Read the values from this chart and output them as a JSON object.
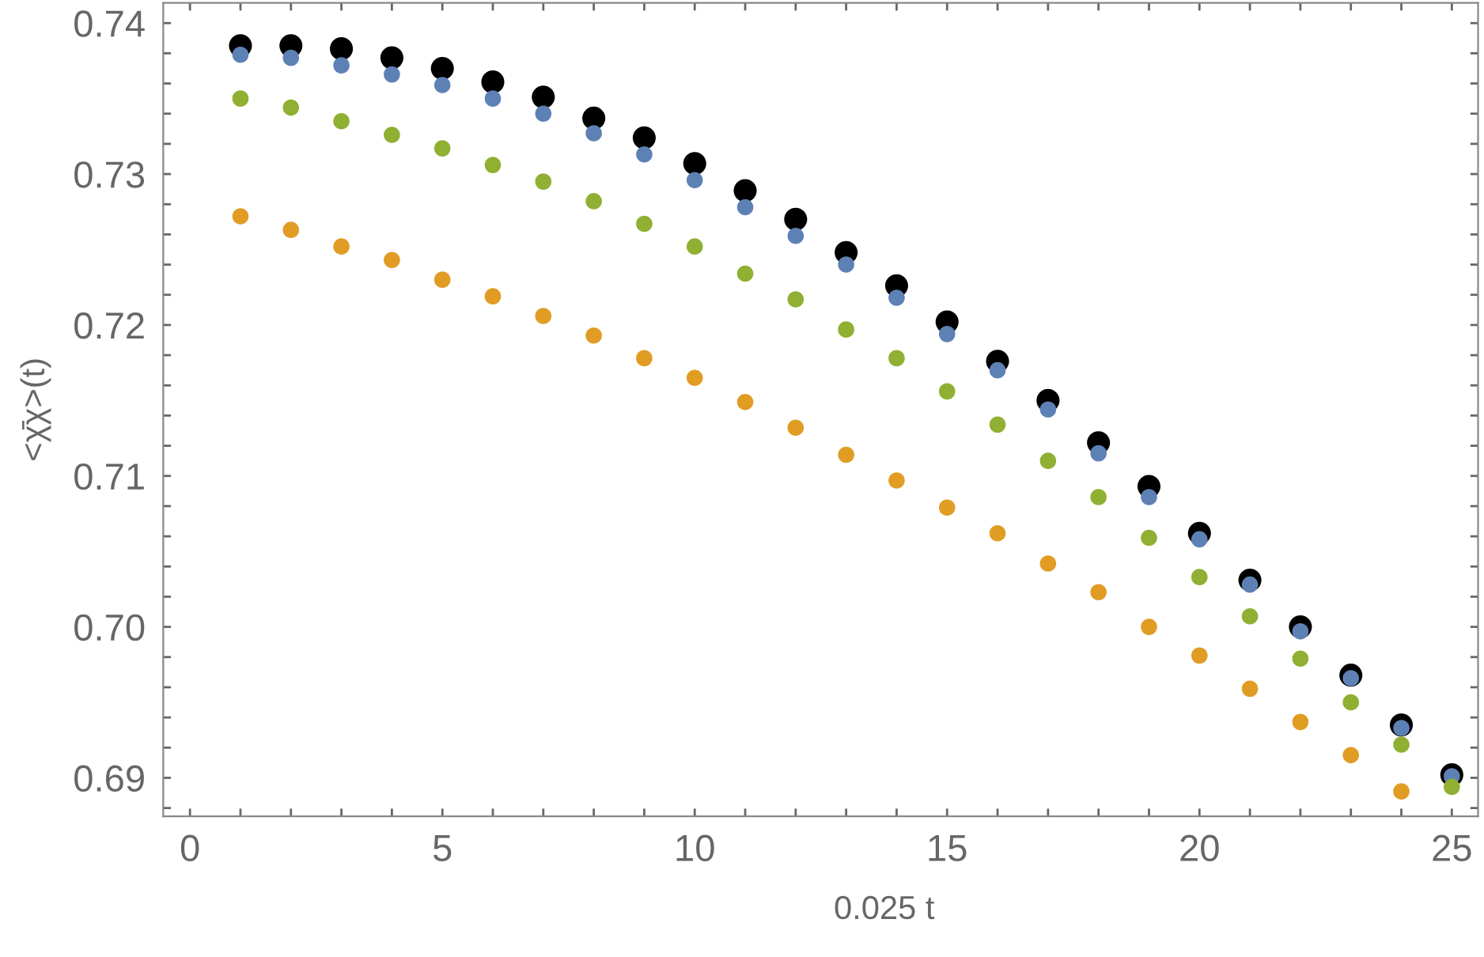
{
  "chart_data": {
    "type": "scatter",
    "xlabel": "0.025 t",
    "ylabel": "<χ̄χ>(t)",
    "x": [
      1,
      2,
      3,
      4,
      5,
      6,
      7,
      8,
      9,
      10,
      11,
      12,
      13,
      14,
      15,
      16,
      17,
      18,
      19,
      20,
      21,
      22,
      23,
      24,
      25
    ],
    "series": [
      {
        "color": "#000000",
        "values": [
          0.7385,
          0.7385,
          0.7383,
          0.7377,
          0.737,
          0.7361,
          0.7351,
          0.7337,
          0.7324,
          0.7307,
          0.7289,
          0.727,
          0.7248,
          0.7226,
          0.7202,
          0.7176,
          0.715,
          0.7122,
          0.7093,
          0.7062,
          0.7031,
          0.7,
          0.6968,
          0.6935,
          0.6902
        ]
      },
      {
        "color": "#5e81b5",
        "values": [
          0.7379,
          0.7377,
          0.7372,
          0.7366,
          0.7359,
          0.735,
          0.734,
          0.7327,
          0.7313,
          0.7296,
          0.7278,
          0.7259,
          0.724,
          0.7218,
          0.7194,
          0.717,
          0.7144,
          0.7115,
          0.7086,
          0.7058,
          0.7028,
          0.6997,
          0.6966,
          0.6933,
          0.6901
        ]
      },
      {
        "color": "#8fb032",
        "values": [
          0.735,
          0.7344,
          0.7335,
          0.7326,
          0.7317,
          0.7306,
          0.7295,
          0.7282,
          0.7267,
          0.7252,
          0.7234,
          0.7217,
          0.7197,
          0.7178,
          0.7156,
          0.7134,
          0.711,
          0.7086,
          0.7059,
          0.7033,
          0.7007,
          0.6979,
          0.695,
          0.6922,
          0.6894
        ]
      },
      {
        "color": "#e19c24",
        "values": [
          0.7272,
          0.7263,
          0.7252,
          0.7243,
          0.723,
          0.7219,
          0.7206,
          0.7193,
          0.7178,
          0.7165,
          0.7149,
          0.7132,
          0.7114,
          0.7097,
          0.7079,
          0.7062,
          0.7042,
          0.7023,
          0.7,
          0.6981,
          0.6959,
          0.6937,
          0.6915,
          0.6891,
          null
        ]
      }
    ],
    "xlim": [
      -0.53,
      25.52
    ],
    "ylim": [
      0.68745,
      0.74134
    ],
    "xticks": [
      0,
      {
        "value": 1,
        "label": null
      },
      {
        "value": 2,
        "label": null
      },
      {
        "value": 3,
        "label": null
      },
      {
        "value": 4,
        "label": null
      },
      5,
      {
        "value": 6,
        "label": null
      },
      {
        "value": 7,
        "label": null
      },
      {
        "value": 8,
        "label": null
      },
      {
        "value": 9,
        "label": null
      },
      10,
      {
        "value": 11,
        "label": null
      },
      {
        "value": 12,
        "label": null
      },
      {
        "value": 13,
        "label": null
      },
      {
        "value": 14,
        "label": null
      },
      15,
      {
        "value": 16,
        "label": null
      },
      {
        "value": 17,
        "label": null
      },
      {
        "value": 18,
        "label": null
      },
      {
        "value": 19,
        "label": null
      },
      20,
      {
        "value": 21,
        "label": null
      },
      {
        "value": 22,
        "label": null
      },
      {
        "value": 23,
        "label": null
      },
      {
        "value": 24,
        "label": null
      },
      25
    ],
    "yticks": [
      {
        "value": 0.688,
        "label": null
      },
      {
        "value": 0.69,
        "label": "0.69"
      },
      {
        "value": 0.692,
        "label": null
      },
      {
        "value": 0.694,
        "label": null
      },
      {
        "value": 0.696,
        "label": null
      },
      {
        "value": 0.698,
        "label": null
      },
      {
        "value": 0.7,
        "label": "0.70"
      },
      {
        "value": 0.702,
        "label": null
      },
      {
        "value": 0.704,
        "label": null
      },
      {
        "value": 0.706,
        "label": null
      },
      {
        "value": 0.708,
        "label": null
      },
      {
        "value": 0.71,
        "label": "0.71"
      },
      {
        "value": 0.712,
        "label": null
      },
      {
        "value": 0.714,
        "label": null
      },
      {
        "value": 0.716,
        "label": null
      },
      {
        "value": 0.718,
        "label": null
      },
      {
        "value": 0.72,
        "label": "0.72"
      },
      {
        "value": 0.722,
        "label": null
      },
      {
        "value": 0.724,
        "label": null
      },
      {
        "value": 0.726,
        "label": null
      },
      {
        "value": 0.728,
        "label": null
      },
      {
        "value": 0.73,
        "label": "0.73"
      },
      {
        "value": 0.732,
        "label": null
      },
      {
        "value": 0.734,
        "label": null
      },
      {
        "value": 0.736,
        "label": null
      },
      {
        "value": 0.738,
        "label": null
      },
      {
        "value": 0.74,
        "label": "0.74"
      }
    ],
    "marker": "circle",
    "grid": false,
    "legend": false
  }
}
